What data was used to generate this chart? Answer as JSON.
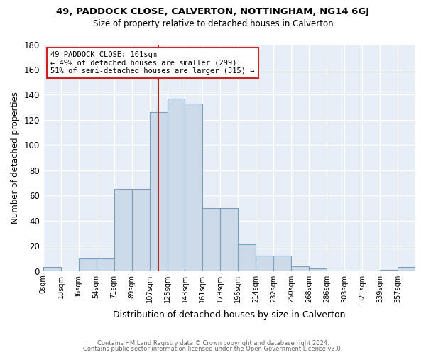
{
  "title": "49, PADDOCK CLOSE, CALVERTON, NOTTINGHAM, NG14 6GJ",
  "subtitle": "Size of property relative to detached houses in Calverton",
  "xlabel": "Distribution of detached houses by size in Calverton",
  "ylabel": "Number of detached properties",
  "footer_line1": "Contains HM Land Registry data © Crown copyright and database right 2024.",
  "footer_line2": "Contains public sector information licensed under the Open Government Licence v3.0.",
  "bin_labels": [
    "0sqm",
    "18sqm",
    "36sqm",
    "54sqm",
    "71sqm",
    "89sqm",
    "107sqm",
    "125sqm",
    "143sqm",
    "161sqm",
    "179sqm",
    "196sqm",
    "214sqm",
    "232sqm",
    "250sqm",
    "268sqm",
    "286sqm",
    "303sqm",
    "321sqm",
    "339sqm",
    "357sqm"
  ],
  "bar_heights": [
    3,
    0,
    10,
    10,
    65,
    65,
    126,
    137,
    133,
    50,
    50,
    21,
    12,
    12,
    4,
    2,
    0,
    0,
    0,
    1,
    3
  ],
  "bar_color": "#ccd9e8",
  "bar_edge_color": "#7aa0c0",
  "property_label": "49 PADDOCK CLOSE: 101sqm",
  "pct_smaller": 49,
  "n_smaller": 299,
  "pct_larger": 51,
  "n_larger": 315,
  "vline_color": "#bb2222",
  "ylim": [
    0,
    180
  ],
  "yticks": [
    0,
    20,
    40,
    60,
    80,
    100,
    120,
    140,
    160,
    180
  ],
  "vline_x_bin": 6,
  "bg_color": "#e8eef5"
}
